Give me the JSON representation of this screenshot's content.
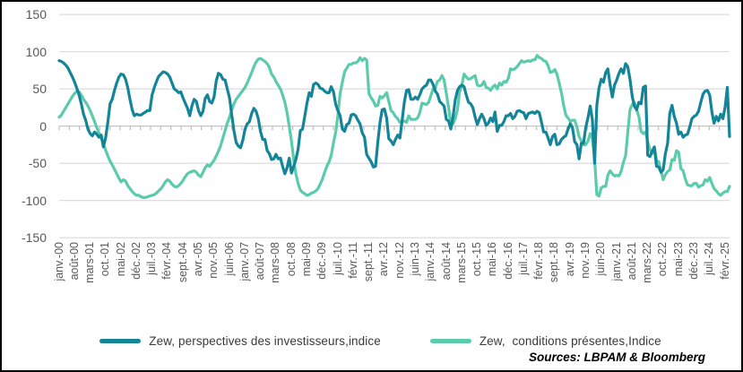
{
  "frame": {
    "background": "#ffffff",
    "border_color": "#000000"
  },
  "legend": {
    "items": [
      {
        "label": "Zew, perspectives des investisseurs,indice",
        "color": "#148599"
      },
      {
        "label": "Zew,  conditions présentes,Indice",
        "color": "#5BCBAB"
      }
    ]
  },
  "source_note": "Sources: LBPAM & Bloomberg",
  "chart_data": {
    "type": "line",
    "title": "",
    "xlabel": "",
    "ylabel": "",
    "ylim": [
      -150,
      150
    ],
    "grid": "horizontal-only",
    "legend_position": "bottom",
    "gridline_color": "#d9d9d9",
    "axis_line_color": "#bfbfbf",
    "axis_label_color": "#595959",
    "x_label_interval_months": 7,
    "x_tick_labels": [
      "janv.-00",
      "août-00",
      "mars-01",
      "oct.-01",
      "mai-02",
      "déc.-02",
      "juil.-03",
      "févr.-04",
      "sept.-04",
      "avr.-05",
      "nov.-05",
      "juin-06",
      "janv.-07",
      "août-07",
      "mars-08",
      "oct.-08",
      "mai-09",
      "déc.-09",
      "juil.-10",
      "févr.-11",
      "sept.-11",
      "avr.-12",
      "nov.-12",
      "juin-13",
      "janv.-14",
      "août-14",
      "mars-15",
      "oct.-15",
      "mai-16",
      "déc.-16",
      "juil.-17",
      "févr.-18",
      "sept.-18",
      "avr.-19",
      "nov.-19",
      "juin-20",
      "janv.-21",
      "août-21",
      "mars-22",
      "oct.-22",
      "mai-23",
      "déc.-23",
      "juil.-24",
      "févr.-25"
    ],
    "y_ticks": [
      150,
      100,
      50,
      0,
      -50,
      -100,
      -150
    ],
    "y_tick_labels": [
      "150",
      "100",
      "50",
      "0",
      "-50",
      "-100",
      "-150"
    ],
    "x_start_month": "janv.-00",
    "x_end_month": "avr.-25",
    "series": [
      {
        "name": "Zew, perspectives des investisseurs,indice",
        "color": "#148599",
        "values": [
          88,
          87,
          85,
          82,
          78,
          72,
          66,
          59,
          51,
          42,
          30,
          16,
          8,
          -4,
          -10,
          -13,
          -8,
          -11,
          -15,
          -12,
          -28,
          -16,
          5,
          30,
          36,
          48,
          58,
          66,
          70,
          69,
          63,
          52,
          36,
          22,
          14,
          16,
          15,
          15,
          17,
          19,
          21,
          21,
          42,
          52,
          60,
          67,
          70,
          73,
          72,
          70,
          66,
          58,
          50,
          48,
          45,
          46,
          38,
          31,
          24,
          14,
          27,
          36,
          33,
          21,
          14,
          20,
          37,
          42,
          33,
          31,
          39,
          61,
          71,
          69,
          63,
          62,
          50,
          38,
          15,
          -6,
          -22,
          -27,
          -29,
          -19,
          -4,
          3,
          6,
          17,
          24,
          20,
          10,
          -7,
          -18,
          -18,
          -33,
          -37,
          -45,
          -44,
          -38,
          -44,
          -43,
          -54,
          -64,
          -56,
          -43,
          -63,
          -54,
          -45,
          -31,
          -6,
          -4,
          13,
          31,
          45,
          40,
          56,
          58,
          56,
          51,
          50,
          47,
          45,
          45,
          53,
          46,
          29,
          21,
          14,
          -4,
          -7,
          2,
          4,
          15,
          16,
          14,
          8,
          3,
          -9,
          -15,
          -38,
          -43,
          -48,
          -55,
          -54,
          -22,
          5,
          22,
          23,
          11,
          -17,
          -20,
          -25,
          -18,
          -12,
          -16,
          7,
          32,
          48,
          49,
          36,
          36,
          39,
          36,
          42,
          50,
          53,
          55,
          62,
          62,
          56,
          47,
          43,
          33,
          30,
          27,
          9,
          7,
          -4,
          12,
          35,
          48,
          53,
          55,
          53,
          42,
          32,
          30,
          25,
          12,
          2,
          10,
          16,
          10,
          1,
          4,
          11,
          6,
          19,
          -7,
          1,
          1,
          6,
          14,
          14,
          17,
          10,
          13,
          20,
          21,
          19,
          18,
          10,
          17,
          18,
          19,
          17,
          20,
          18,
          5,
          -8,
          -8,
          -16,
          -25,
          -14,
          -11,
          -25,
          -24,
          -18,
          -15,
          -13,
          -4,
          3,
          -2,
          -21,
          -25,
          -44,
          -23,
          -23,
          -2,
          11,
          27,
          9,
          -50,
          28,
          51,
          63,
          59,
          72,
          77,
          56,
          39,
          55,
          62,
          71,
          77,
          71,
          84,
          80,
          63,
          40,
          27,
          22,
          32,
          30,
          52,
          54,
          -39,
          -41,
          -34,
          -28,
          -54,
          -55,
          -62,
          -59,
          -37,
          -23,
          17,
          28,
          13,
          4,
          -11,
          -8,
          -15,
          -12,
          -11,
          -1,
          10,
          13,
          15,
          20,
          32,
          43,
          47,
          48,
          42,
          19,
          4,
          13,
          7,
          16,
          10,
          26,
          52,
          -14
        ]
      },
      {
        "name": "Zew,  conditions présentes,Indice",
        "color": "#5BCBAB",
        "values": [
          12,
          15,
          20,
          25,
          30,
          35,
          40,
          44,
          47,
          46,
          42,
          36,
          32,
          27,
          21,
          14,
          6,
          -2,
          -9,
          -16,
          -24,
          -32,
          -40,
          -47,
          -52,
          -58,
          -64,
          -70,
          -75,
          -72,
          -74,
          -80,
          -84,
          -88,
          -91,
          -93,
          -93,
          -95,
          -96,
          -96,
          -95,
          -94,
          -93,
          -92,
          -90,
          -87,
          -84,
          -80,
          -75,
          -72,
          -74,
          -78,
          -81,
          -82,
          -80,
          -77,
          -73,
          -68,
          -64,
          -62,
          -61,
          -60,
          -62,
          -66,
          -68,
          -62,
          -56,
          -52,
          -54,
          -50,
          -46,
          -40,
          -34,
          -26,
          -16,
          -6,
          4,
          12,
          22,
          30,
          36,
          40,
          44,
          48,
          52,
          58,
          65,
          72,
          80,
          86,
          90,
          91,
          89,
          87,
          84,
          79,
          70,
          66,
          60,
          55,
          50,
          42,
          32,
          18,
          0,
          -20,
          -45,
          -64,
          -77,
          -86,
          -89,
          -91,
          -93,
          -92,
          -90,
          -89,
          -87,
          -84,
          -78,
          -71,
          -62,
          -54,
          -48,
          -39,
          -22,
          -8,
          15,
          44,
          59,
          73,
          78,
          83,
          83,
          85,
          85,
          87,
          92,
          88,
          91,
          89,
          44,
          38,
          34,
          27,
          28,
          40,
          38,
          41,
          45,
          33,
          21,
          18,
          13,
          10,
          5,
          6,
          7,
          5,
          14,
          9,
          9,
          9,
          11,
          18,
          31,
          30,
          29,
          32,
          41,
          50,
          51,
          60,
          62,
          68,
          62,
          44,
          25,
          3,
          3,
          10,
          22,
          46,
          55,
          70,
          66,
          63,
          64,
          66,
          68,
          55,
          54,
          55,
          60,
          52,
          51,
          48,
          53,
          55,
          50,
          58,
          55,
          60,
          59,
          64,
          77,
          76,
          77,
          80,
          84,
          88,
          86,
          87,
          88,
          87,
          89,
          89,
          95,
          92,
          91,
          88,
          87,
          81,
          72,
          73,
          76,
          70,
          58,
          45,
          28,
          15,
          11,
          6,
          8,
          8,
          -1,
          -14,
          -20,
          -25,
          -25,
          -20,
          -10,
          -16,
          -43,
          -92,
          -94,
          -83,
          -81,
          -81,
          -66,
          -60,
          -64,
          -67,
          -66,
          -67,
          -61,
          -49,
          -40,
          -9,
          22,
          29,
          32,
          22,
          13,
          -7,
          -10,
          -8,
          -21,
          -31,
          -37,
          -28,
          -46,
          -48,
          -60,
          -72,
          -65,
          -61,
          -59,
          -45,
          -46,
          -33,
          -35,
          -57,
          -60,
          -71,
          -79,
          -80,
          -80,
          -77,
          -77,
          -82,
          -80,
          -79,
          -72,
          -74,
          -69,
          -77,
          -84,
          -87,
          -91,
          -93,
          -90,
          -88,
          -88,
          -81
        ]
      }
    ]
  }
}
